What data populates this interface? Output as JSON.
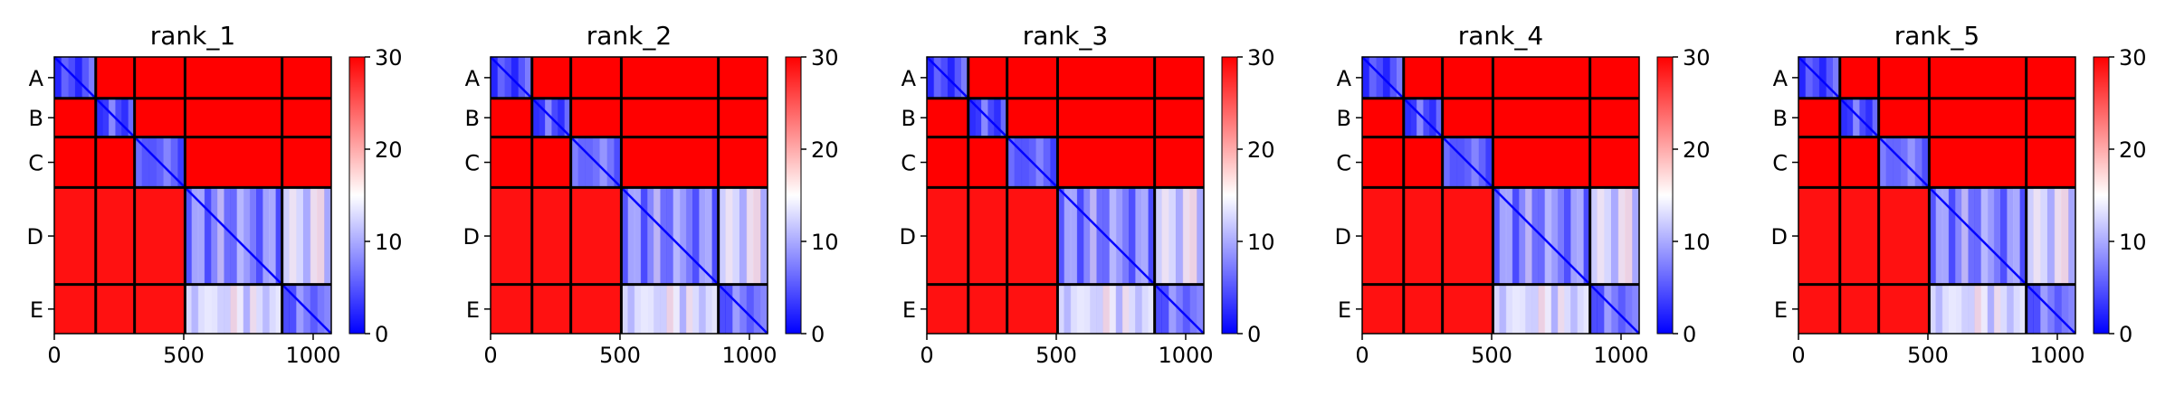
{
  "chart_data": [
    {
      "type": "heatmap",
      "title": "rank_1",
      "xlim": [
        0,
        1070
      ],
      "xticks": [
        0,
        500,
        1000
      ],
      "ytick_labels": [
        "A",
        "B",
        "C",
        "D",
        "E"
      ],
      "chain_boundaries": [
        0,
        160,
        310,
        505,
        880,
        1070
      ],
      "colorbar": {
        "min": 0,
        "max": 30,
        "ticks": [
          0,
          10,
          20,
          30
        ],
        "colormap": "bwr"
      },
      "block_levels": [
        [
          4,
          30,
          30,
          30,
          30
        ],
        [
          30,
          5,
          30,
          30,
          30
        ],
        [
          30,
          30,
          6,
          30,
          30
        ],
        [
          29,
          29,
          29,
          8,
          13
        ],
        [
          29,
          29,
          29,
          13,
          7
        ]
      ]
    },
    {
      "type": "heatmap",
      "title": "rank_2",
      "xlim": [
        0,
        1070
      ],
      "xticks": [
        0,
        500,
        1000
      ],
      "ytick_labels": [
        "A",
        "B",
        "C",
        "D",
        "E"
      ],
      "chain_boundaries": [
        0,
        160,
        310,
        505,
        880,
        1070
      ],
      "colorbar": {
        "min": 0,
        "max": 30,
        "ticks": [
          0,
          10,
          20,
          30
        ],
        "colormap": "bwr"
      },
      "block_levels": [
        [
          4,
          30,
          30,
          30,
          30
        ],
        [
          30,
          5,
          30,
          30,
          30
        ],
        [
          30,
          30,
          7,
          30,
          30
        ],
        [
          29,
          29,
          29,
          8,
          13
        ],
        [
          29,
          29,
          29,
          13,
          7
        ]
      ]
    },
    {
      "type": "heatmap",
      "title": "rank_3",
      "xlim": [
        0,
        1070
      ],
      "xticks": [
        0,
        500,
        1000
      ],
      "ytick_labels": [
        "A",
        "B",
        "C",
        "D",
        "E"
      ],
      "chain_boundaries": [
        0,
        160,
        310,
        505,
        880,
        1070
      ],
      "colorbar": {
        "min": 0,
        "max": 30,
        "ticks": [
          0,
          10,
          20,
          30
        ],
        "colormap": "bwr"
      },
      "block_levels": [
        [
          4,
          30,
          30,
          30,
          30
        ],
        [
          30,
          5,
          30,
          30,
          30
        ],
        [
          30,
          30,
          6,
          30,
          30
        ],
        [
          29,
          29,
          29,
          8,
          13
        ],
        [
          29,
          29,
          29,
          13,
          7
        ]
      ]
    },
    {
      "type": "heatmap",
      "title": "rank_4",
      "xlim": [
        0,
        1070
      ],
      "xticks": [
        0,
        500,
        1000
      ],
      "ytick_labels": [
        "A",
        "B",
        "C",
        "D",
        "E"
      ],
      "chain_boundaries": [
        0,
        160,
        310,
        505,
        880,
        1070
      ],
      "colorbar": {
        "min": 0,
        "max": 30,
        "ticks": [
          0,
          10,
          20,
          30
        ],
        "colormap": "bwr"
      },
      "block_levels": [
        [
          4,
          30,
          30,
          30,
          30
        ],
        [
          30,
          5,
          30,
          30,
          30
        ],
        [
          30,
          30,
          6,
          30,
          30
        ],
        [
          29,
          29,
          29,
          8,
          13
        ],
        [
          29,
          29,
          29,
          13,
          7
        ]
      ]
    },
    {
      "type": "heatmap",
      "title": "rank_5",
      "xlim": [
        0,
        1070
      ],
      "xticks": [
        0,
        500,
        1000
      ],
      "ytick_labels": [
        "A",
        "B",
        "C",
        "D",
        "E"
      ],
      "chain_boundaries": [
        0,
        160,
        310,
        505,
        880,
        1070
      ],
      "colorbar": {
        "min": 0,
        "max": 30,
        "ticks": [
          0,
          10,
          20,
          30
        ],
        "colormap": "bwr"
      },
      "block_levels": [
        [
          4,
          30,
          30,
          30,
          30
        ],
        [
          30,
          5,
          30,
          30,
          30
        ],
        [
          30,
          30,
          7,
          30,
          30
        ],
        [
          29,
          29,
          29,
          8,
          13
        ],
        [
          29,
          29,
          29,
          13,
          7
        ]
      ]
    }
  ]
}
